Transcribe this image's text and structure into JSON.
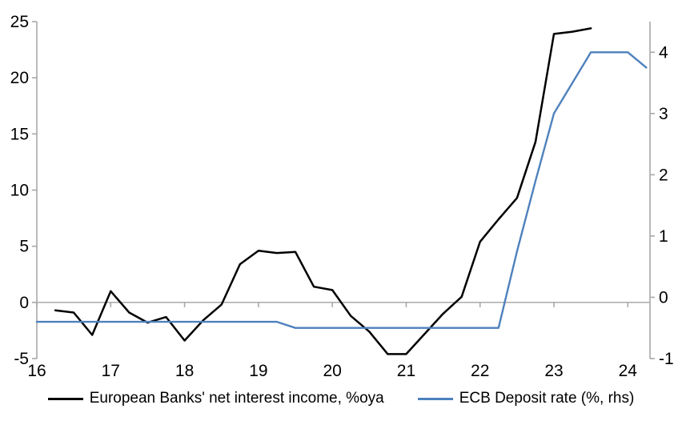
{
  "chart_data": {
    "type": "line",
    "title": "",
    "x_axis": {
      "min": 16,
      "max": 24.3,
      "tick_years": [
        16,
        17,
        18,
        19,
        20,
        21,
        22,
        23,
        24
      ],
      "labels": [
        "16",
        "17",
        "18",
        "19",
        "20",
        "21",
        "22",
        "23",
        "24"
      ]
    },
    "left_axis": {
      "min": -5,
      "max": 25,
      "ticks": [
        -5,
        0,
        5,
        10,
        15,
        20,
        25
      ],
      "labels": [
        "-5",
        "0",
        "5",
        "10",
        "15",
        "20",
        "25"
      ]
    },
    "right_axis": {
      "min": -1,
      "max": 4.5,
      "ticks": [
        -1,
        0,
        1,
        2,
        3,
        4
      ],
      "labels": [
        "-1",
        "0",
        "1",
        "2",
        "3",
        "4"
      ]
    },
    "axis_color": "#a8a8a8",
    "zero_line_color": "#b0b0b0",
    "series": [
      {
        "name": "European Banks' net interest income, %oya",
        "axis": "left",
        "color": "#000000",
        "stroke_width": 2.5,
        "x": [
          16.25,
          16.5,
          16.75,
          17.0,
          17.25,
          17.5,
          17.75,
          18.0,
          18.25,
          18.5,
          18.75,
          19.0,
          19.25,
          19.5,
          19.75,
          20.0,
          20.25,
          20.5,
          20.75,
          21.0,
          21.25,
          21.5,
          21.75,
          22.0,
          22.25,
          22.5,
          22.75,
          23.0,
          23.25,
          23.5
        ],
        "values": [
          -0.7,
          -0.9,
          -2.9,
          1.0,
          -0.9,
          -1.8,
          -1.3,
          -3.4,
          -1.6,
          -0.2,
          3.4,
          4.6,
          4.4,
          4.5,
          1.4,
          1.1,
          -1.2,
          -2.6,
          -4.6,
          -4.6,
          -2.8,
          -1.0,
          0.5,
          5.4,
          7.4,
          9.3,
          14.3,
          23.9,
          24.1,
          24.4
        ]
      },
      {
        "name": "ECB Deposit rate (%, rhs)",
        "axis": "right",
        "color": "#4e81bd",
        "stroke_width": 2.4,
        "x": [
          16.0,
          16.25,
          16.5,
          16.75,
          17.0,
          17.25,
          17.5,
          17.75,
          18.0,
          18.25,
          18.5,
          18.75,
          19.0,
          19.25,
          19.5,
          19.75,
          20.0,
          20.25,
          20.5,
          20.75,
          21.0,
          21.25,
          21.5,
          21.75,
          22.0,
          22.25,
          22.5,
          22.75,
          23.0,
          23.25,
          23.5,
          23.75,
          24.0,
          24.25
        ],
        "values": [
          -0.4,
          -0.4,
          -0.4,
          -0.4,
          -0.4,
          -0.4,
          -0.4,
          -0.4,
          -0.4,
          -0.4,
          -0.4,
          -0.4,
          -0.4,
          -0.4,
          -0.5,
          -0.5,
          -0.5,
          -0.5,
          -0.5,
          -0.5,
          -0.5,
          -0.5,
          -0.5,
          -0.5,
          -0.5,
          -0.5,
          0.75,
          1.9,
          3.0,
          3.5,
          4.0,
          4.0,
          4.0,
          3.75
        ]
      }
    ],
    "legend": [
      {
        "label": "European Banks' net interest income, %oya",
        "color": "#000000"
      },
      {
        "label": "ECB Deposit rate (%, rhs)",
        "color": "#4e81bd"
      }
    ],
    "legend_position": "bottom"
  }
}
